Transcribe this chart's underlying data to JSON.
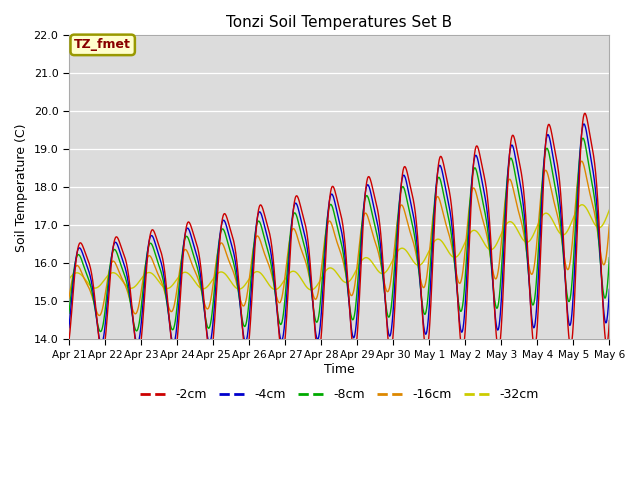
{
  "title": "Tonzi Soil Temperatures Set B",
  "xlabel": "Time",
  "ylabel": "Soil Temperature (C)",
  "ylim": [
    14.0,
    22.0
  ],
  "yticks": [
    14.0,
    15.0,
    16.0,
    17.0,
    18.0,
    19.0,
    20.0,
    21.0,
    22.0
  ],
  "x_tick_labels": [
    "Apr 21",
    "Apr 22",
    "Apr 23",
    "Apr 24",
    "Apr 25",
    "Apr 26",
    "Apr 27",
    "Apr 28",
    "Apr 29",
    "Apr 30",
    "May 1",
    "May 2",
    "May 3",
    "May 4",
    "May 5",
    "May 6"
  ],
  "series_colors": {
    "-2cm": "#cc0000",
    "-4cm": "#0000cc",
    "-8cm": "#00aa00",
    "-16cm": "#dd8800",
    "-32cm": "#cccc00"
  },
  "legend_label": "TZ_fmet",
  "legend_label_bg": "#ffffcc",
  "legend_label_border": "#999900",
  "axes_bg": "#dcdcdc",
  "days": 15,
  "n_points": 1500
}
